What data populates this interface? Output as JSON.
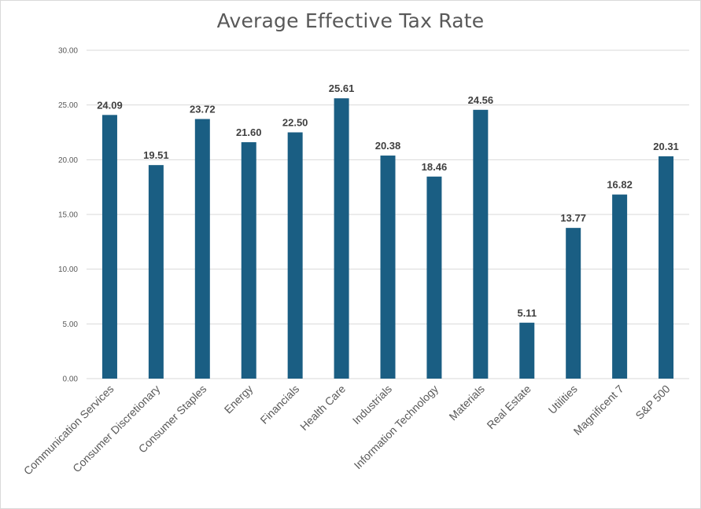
{
  "chart_data": {
    "type": "bar",
    "title": "Average Effective Tax Rate",
    "xlabel": "",
    "ylabel": "",
    "ylim": [
      0,
      30
    ],
    "yticks": [
      "0.00",
      "5.00",
      "10.00",
      "15.00",
      "20.00",
      "25.00",
      "30.00"
    ],
    "grid": true,
    "legend": "none",
    "bar_color": "#1a5e83",
    "categories": [
      "Communication Services",
      "Consumer Discretionary",
      "Consumer Staples",
      "Energy",
      "Financials",
      "Health Care",
      "Industrials",
      "Information Technology",
      "Materials",
      "Real Estate",
      "Utilities",
      "Magnificent 7",
      "S&P 500"
    ],
    "values": [
      24.09,
      19.51,
      23.72,
      21.6,
      22.5,
      25.61,
      20.38,
      18.46,
      24.56,
      5.11,
      13.77,
      16.82,
      20.31
    ],
    "data_labels": [
      "24.09",
      "19.51",
      "23.72",
      "21.60",
      "22.50",
      "25.61",
      "20.38",
      "18.46",
      "24.56",
      "5.11",
      "13.77",
      "16.82",
      "20.31"
    ]
  }
}
